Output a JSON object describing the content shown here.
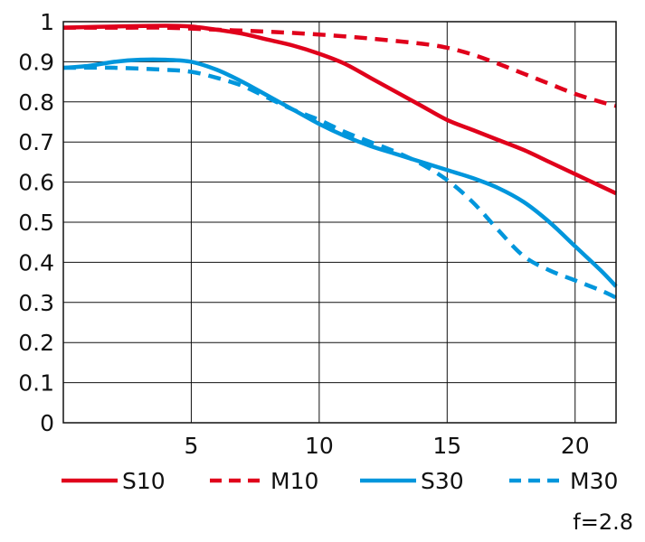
{
  "chart_data": {
    "type": "line",
    "title": "",
    "xlabel": "",
    "ylabel": "",
    "xlim": [
      0,
      21.6
    ],
    "ylim": [
      0,
      1
    ],
    "x_ticks": [
      5,
      10,
      15,
      20
    ],
    "x_tick_labels": [
      "5",
      "10",
      "15",
      "20"
    ],
    "y_ticks": [
      0,
      0.1,
      0.2,
      0.3,
      0.4,
      0.5,
      0.6,
      0.7,
      0.8,
      0.9,
      1
    ],
    "y_tick_labels": [
      "0",
      "0.1",
      "0.2",
      "0.3",
      "0.4",
      "0.5",
      "0.6",
      "0.7",
      "0.8",
      "0.9",
      "1"
    ],
    "grid": true,
    "legend_position": "bottom",
    "annotation": "f=2.8",
    "series": [
      {
        "name": "S10",
        "color": "#e0001b",
        "dashed": false,
        "points": [
          [
            0,
            0.985
          ],
          [
            2,
            0.988
          ],
          [
            4,
            0.99
          ],
          [
            5,
            0.988
          ],
          [
            6,
            0.98
          ],
          [
            7,
            0.97
          ],
          [
            8,
            0.955
          ],
          [
            9,
            0.94
          ],
          [
            10,
            0.92
          ],
          [
            11,
            0.895
          ],
          [
            12,
            0.86
          ],
          [
            13,
            0.825
          ],
          [
            14,
            0.79
          ],
          [
            15,
            0.755
          ],
          [
            16,
            0.73
          ],
          [
            17,
            0.705
          ],
          [
            18,
            0.68
          ],
          [
            19,
            0.65
          ],
          [
            20,
            0.62
          ],
          [
            21,
            0.59
          ],
          [
            21.6,
            0.572
          ]
        ]
      },
      {
        "name": "M10",
        "color": "#e0001b",
        "dashed": true,
        "points": [
          [
            0,
            0.985
          ],
          [
            2,
            0.985
          ],
          [
            4,
            0.985
          ],
          [
            6,
            0.98
          ],
          [
            8,
            0.975
          ],
          [
            10,
            0.968
          ],
          [
            12,
            0.958
          ],
          [
            14,
            0.945
          ],
          [
            15,
            0.935
          ],
          [
            16,
            0.918
          ],
          [
            17,
            0.895
          ],
          [
            18,
            0.87
          ],
          [
            19,
            0.845
          ],
          [
            20,
            0.82
          ],
          [
            21,
            0.8
          ],
          [
            21.6,
            0.79
          ]
        ]
      },
      {
        "name": "S30",
        "color": "#0096dc",
        "dashed": false,
        "points": [
          [
            0,
            0.885
          ],
          [
            1,
            0.89
          ],
          [
            2,
            0.9
          ],
          [
            3,
            0.905
          ],
          [
            4,
            0.905
          ],
          [
            5,
            0.9
          ],
          [
            6,
            0.88
          ],
          [
            7,
            0.85
          ],
          [
            8,
            0.815
          ],
          [
            9,
            0.78
          ],
          [
            10,
            0.745
          ],
          [
            11,
            0.715
          ],
          [
            12,
            0.69
          ],
          [
            13,
            0.67
          ],
          [
            14,
            0.65
          ],
          [
            15,
            0.63
          ],
          [
            16,
            0.61
          ],
          [
            17,
            0.585
          ],
          [
            18,
            0.55
          ],
          [
            19,
            0.5
          ],
          [
            20,
            0.44
          ],
          [
            21,
            0.38
          ],
          [
            21.6,
            0.34
          ]
        ]
      },
      {
        "name": "M30",
        "color": "#0096dc",
        "dashed": true,
        "points": [
          [
            0,
            0.885
          ],
          [
            2,
            0.885
          ],
          [
            4,
            0.88
          ],
          [
            5,
            0.875
          ],
          [
            6,
            0.86
          ],
          [
            7,
            0.84
          ],
          [
            8,
            0.81
          ],
          [
            9,
            0.78
          ],
          [
            10,
            0.755
          ],
          [
            11,
            0.725
          ],
          [
            12,
            0.7
          ],
          [
            13,
            0.675
          ],
          [
            14,
            0.645
          ],
          [
            15,
            0.605
          ],
          [
            16,
            0.55
          ],
          [
            17,
            0.48
          ],
          [
            18,
            0.415
          ],
          [
            19,
            0.38
          ],
          [
            20,
            0.355
          ],
          [
            21,
            0.33
          ],
          [
            21.6,
            0.312
          ]
        ]
      }
    ]
  }
}
